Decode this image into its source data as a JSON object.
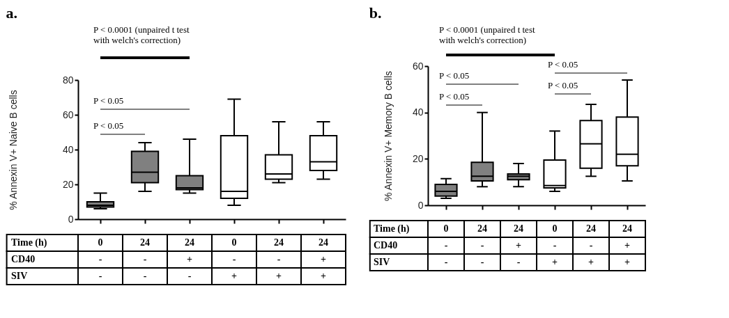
{
  "chart_data": [
    {
      "type": "box",
      "title": "a.",
      "ylabel": "% Annexin V+ Naive B cells",
      "xlabel": "Time (h)",
      "categories": [
        "0",
        "24",
        "24",
        "0",
        "24",
        "24"
      ],
      "boxes": [
        {
          "low": 6,
          "q1": 7,
          "median": 8,
          "q3": 10,
          "high": 15
        },
        {
          "low": 16,
          "q1": 21,
          "median": 27,
          "q3": 39,
          "high": 44
        },
        {
          "low": 15,
          "q1": 17,
          "median": 18,
          "q3": 25,
          "high": 46
        },
        {
          "low": 8,
          "q1": 12,
          "median": 16,
          "q3": 48,
          "high": 69
        },
        {
          "low": 21,
          "q1": 23,
          "median": 26,
          "q3": 37,
          "high": 56
        },
        {
          "low": 23,
          "q1": 28,
          "median": 33,
          "q3": 48,
          "high": 56
        }
      ],
      "colors": [
        "#808080",
        "#808080",
        "#808080",
        "#ffffff",
        "#ffffff",
        "#ffffff"
      ],
      "ylim": [
        0,
        80
      ],
      "yticks": [
        0,
        20,
        40,
        60,
        80
      ],
      "annotations": [
        "P < 0.0001 (unpaired t test\nwith welch's correction)",
        "P < 0.05",
        "P < 0.05",
        "CD40",
        "-",
        "-",
        "+",
        "-",
        "-",
        "+",
        "SIV",
        "-",
        "-",
        "-",
        "+",
        "+",
        "+"
      ]
    },
    {
      "type": "box",
      "title": "b.",
      "ylabel": "% Annexin V+ Memory B cells",
      "xlabel": "Time (h)",
      "categories": [
        "0",
        "24",
        "24",
        "0",
        "24",
        "24"
      ],
      "boxes": [
        {
          "low": 3,
          "q1": 4,
          "median": 6,
          "q3": 9,
          "high": 11.5
        },
        {
          "low": 8,
          "q1": 10.5,
          "median": 12.5,
          "q3": 18.5,
          "high": 40
        },
        {
          "low": 8,
          "q1": 11,
          "median": 12.5,
          "q3": 13.5,
          "high": 18
        },
        {
          "low": 6,
          "q1": 7.5,
          "median": 8.5,
          "q3": 19.5,
          "high": 32
        },
        {
          "low": 12.5,
          "q1": 16,
          "median": 26.5,
          "q3": 36.5,
          "high": 43.5
        },
        {
          "low": 10.5,
          "q1": 17,
          "median": 22,
          "q3": 38,
          "high": 54
        }
      ],
      "colors": [
        "#808080",
        "#808080",
        "#808080",
        "#ffffff",
        "#ffffff",
        "#ffffff"
      ],
      "ylim": [
        0,
        60
      ],
      "yticks": [
        0,
        20,
        40,
        60
      ],
      "annotations": [
        "P < 0.0001 (unpaired t test\nwith welch's correction)",
        "P < 0.05",
        "P < 0.05",
        "P < 0.05",
        "P < 0.05",
        "CD40",
        "-",
        "-",
        "+",
        "-",
        "-",
        "+",
        "SIV",
        "-",
        "-",
        "-",
        "+",
        "+",
        "+"
      ]
    }
  ]
}
